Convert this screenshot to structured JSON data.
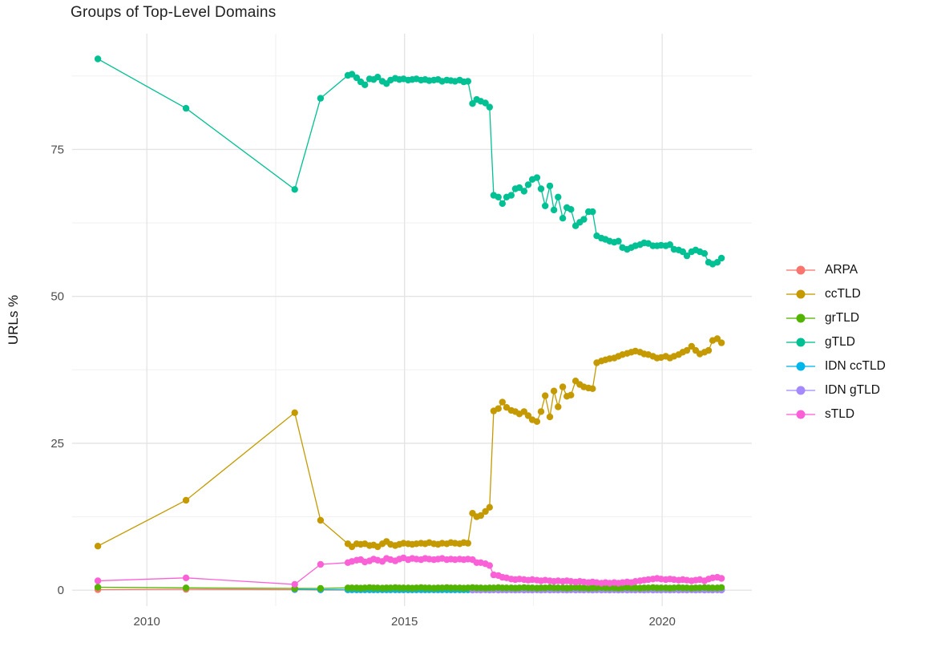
{
  "chart": {
    "title": "Groups of Top-Level Domains",
    "ylabel": "URLs %"
  },
  "chart_data": {
    "type": "line",
    "title": "Groups of Top-Level Domains",
    "xlabel": "",
    "ylabel": "URLs %",
    "grid": true,
    "legend_position": "right",
    "background": "#ffffff",
    "axes": {
      "xlim": [
        2008.55,
        2021.74
      ],
      "ylim": [
        -2.7,
        94.7
      ],
      "x_ticks": [
        2010,
        2015,
        2020
      ],
      "x_tick_labels": [
        "2010",
        "2015",
        "2020"
      ],
      "x_minor_ticks": [
        2012.5,
        2017.5
      ],
      "y_ticks": [
        0,
        25,
        50,
        75
      ],
      "y_tick_labels": [
        "0",
        "25",
        "50",
        "75"
      ],
      "y_minor_ticks": [
        12.5,
        37.5,
        62.5,
        87.5
      ],
      "tick_label_color": "#4d4d4d",
      "major_grid_color": "#e4e4e4",
      "minor_grid_color": "#f0f0f0"
    },
    "x": [
      2009.05,
      2010.76,
      2012.87,
      2013.37,
      2013.9,
      2013.98,
      2014.07,
      2014.15,
      2014.23,
      2014.32,
      2014.4,
      2014.48,
      2014.57,
      2014.65,
      2014.73,
      2014.82,
      2014.9,
      2014.98,
      2015.07,
      2015.15,
      2015.23,
      2015.32,
      2015.4,
      2015.48,
      2015.57,
      2015.65,
      2015.73,
      2015.82,
      2015.9,
      2015.98,
      2016.07,
      2016.15,
      2016.23,
      2016.32,
      2016.4,
      2016.48,
      2016.57,
      2016.65,
      2016.73,
      2016.82,
      2016.9,
      2016.98,
      2017.07,
      2017.15,
      2017.23,
      2017.32,
      2017.4,
      2017.48,
      2017.57,
      2017.65,
      2017.73,
      2017.82,
      2017.9,
      2017.98,
      2018.07,
      2018.15,
      2018.23,
      2018.32,
      2018.4,
      2018.48,
      2018.57,
      2018.65,
      2018.73,
      2018.82,
      2018.9,
      2018.98,
      2019.07,
      2019.15,
      2019.23,
      2019.32,
      2019.4,
      2019.48,
      2019.57,
      2019.65,
      2019.73,
      2019.82,
      2019.9,
      2019.98,
      2020.07,
      2020.15,
      2020.23,
      2020.32,
      2020.4,
      2020.48,
      2020.57,
      2020.65,
      2020.73,
      2020.82,
      2020.9,
      2020.98,
      2021.07,
      2021.15
    ],
    "series": [
      {
        "name": "ARPA",
        "color": "#F8766D",
        "values": [
          0.1,
          0.15,
          0.1,
          0.05,
          0.05,
          0.05,
          0.05,
          0.05,
          0.05,
          0.05,
          0.05,
          0.05,
          0.05,
          0.05,
          0.05,
          0.05,
          0.05,
          0.05,
          0.05,
          0.05,
          0.05,
          0.05,
          0.05,
          0.05,
          0.05,
          0.05,
          0.05,
          0.05,
          0.05,
          0.05,
          0.05,
          0.05,
          0.05,
          0.05,
          0.05,
          0.05,
          0.05,
          0.05,
          0.05,
          0.05,
          0.05,
          0.05,
          0.05,
          0.05,
          0.05,
          0.05,
          0.05,
          0.05,
          0.05,
          0.05,
          0.05,
          0.05,
          0.05,
          0.05,
          0.05,
          0.05,
          0.05,
          0.05,
          0.05,
          0.05,
          0.05,
          0.05,
          0.05,
          0.05,
          0.05,
          0.05,
          0.05,
          0.05,
          0.05,
          0.05,
          0.05,
          0.05,
          0.05,
          0.05,
          0.05,
          0.05,
          0.05,
          0.05,
          0.05,
          0.05,
          0.05,
          0.05,
          0.05,
          0.05,
          0.05,
          0.05,
          0.05,
          0.05,
          0.05,
          0.05,
          0.05,
          0.05
        ]
      },
      {
        "name": "ccTLD",
        "color": "#C49A00",
        "values": [
          7.5,
          15.3,
          30.2,
          11.9,
          7.9,
          7.4,
          7.9,
          7.8,
          7.9,
          7.6,
          7.7,
          7.4,
          7.9,
          8.3,
          7.8,
          7.6,
          7.8,
          8.0,
          7.9,
          7.8,
          7.9,
          8.0,
          7.9,
          8.1,
          7.9,
          7.8,
          8.0,
          7.9,
          8.1,
          8.0,
          7.9,
          8.1,
          8.0,
          13.1,
          12.5,
          12.7,
          13.4,
          14.1,
          30.5,
          30.9,
          32.0,
          31.1,
          30.6,
          30.4,
          30.0,
          30.4,
          29.7,
          29.0,
          28.7,
          30.4,
          33.1,
          29.5,
          33.9,
          31.2,
          34.6,
          33.0,
          33.2,
          35.6,
          35.0,
          34.6,
          34.4,
          34.3,
          38.7,
          39.0,
          39.2,
          39.4,
          39.5,
          39.8,
          40.1,
          40.3,
          40.5,
          40.7,
          40.5,
          40.2,
          40.1,
          39.8,
          39.5,
          39.6,
          39.8,
          39.5,
          39.8,
          40.1,
          40.5,
          40.8,
          41.5,
          40.8,
          40.2,
          40.5,
          40.8,
          42.5,
          42.8,
          42.1
        ]
      },
      {
        "name": "grTLD",
        "color": "#53B400",
        "values": [
          0.5,
          0.4,
          0.3,
          0.3,
          0.4,
          0.4,
          0.4,
          0.35,
          0.4,
          0.45,
          0.4,
          0.4,
          0.35,
          0.4,
          0.4,
          0.45,
          0.4,
          0.4,
          0.4,
          0.35,
          0.4,
          0.45,
          0.4,
          0.4,
          0.35,
          0.4,
          0.4,
          0.45,
          0.4,
          0.4,
          0.4,
          0.35,
          0.4,
          0.45,
          0.4,
          0.4,
          0.35,
          0.4,
          0.4,
          0.45,
          0.4,
          0.4,
          0.4,
          0.35,
          0.4,
          0.45,
          0.4,
          0.4,
          0.35,
          0.4,
          0.4,
          0.45,
          0.4,
          0.4,
          0.4,
          0.35,
          0.4,
          0.45,
          0.4,
          0.4,
          0.35,
          0.4,
          0.4,
          0.45,
          0.4,
          0.4,
          0.4,
          0.35,
          0.4,
          0.45,
          0.4,
          0.4,
          0.35,
          0.4,
          0.4,
          0.45,
          0.4,
          0.4,
          0.4,
          0.35,
          0.4,
          0.45,
          0.4,
          0.4,
          0.35,
          0.4,
          0.4,
          0.45,
          0.4,
          0.4,
          0.4,
          0.45
        ]
      },
      {
        "name": "gTLD",
        "color": "#00C094",
        "values": [
          90.4,
          82.0,
          68.2,
          83.7,
          87.6,
          87.8,
          87.2,
          86.5,
          86.0,
          87.0,
          86.9,
          87.3,
          86.6,
          86.2,
          86.8,
          87.1,
          86.9,
          87.0,
          86.8,
          86.9,
          87.0,
          86.8,
          86.9,
          86.7,
          86.8,
          86.9,
          86.6,
          86.8,
          86.7,
          86.6,
          86.8,
          86.5,
          86.6,
          82.8,
          83.5,
          83.2,
          82.9,
          82.2,
          67.2,
          66.9,
          65.8,
          66.9,
          67.2,
          68.3,
          68.5,
          67.9,
          69.0,
          69.9,
          70.2,
          68.3,
          65.4,
          68.8,
          64.7,
          66.9,
          63.3,
          65.1,
          64.8,
          62.0,
          62.6,
          63.1,
          64.4,
          64.4,
          60.3,
          59.9,
          59.7,
          59.4,
          59.2,
          59.4,
          58.3,
          58.0,
          58.3,
          58.6,
          58.8,
          59.1,
          59.0,
          58.6,
          58.6,
          58.7,
          58.6,
          58.8,
          58.0,
          57.9,
          57.6,
          56.9,
          57.6,
          57.9,
          57.6,
          57.3,
          55.8,
          55.5,
          55.8,
          56.5
        ]
      },
      {
        "name": "IDN ccTLD",
        "color": "#00B6EB",
        "values": [
          null,
          null,
          0.15,
          0.1,
          0.08,
          0.08,
          0.08,
          0.08,
          0.08,
          0.08,
          0.08,
          0.08,
          0.08,
          0.08,
          0.08,
          0.08,
          0.08,
          0.08,
          0.08,
          0.08,
          0.08,
          0.08,
          0.08,
          0.08,
          0.08,
          0.08,
          0.08,
          0.08,
          0.08,
          0.08,
          0.08,
          0.08,
          0.08,
          0.08,
          0.08,
          0.08,
          0.08,
          0.08,
          0.08,
          0.08,
          0.08,
          0.08,
          0.08,
          0.08,
          0.08,
          0.08,
          0.08,
          0.08,
          0.08,
          0.08,
          0.08,
          0.08,
          0.08,
          0.08,
          0.08,
          0.08,
          0.08,
          0.08,
          0.08,
          0.08,
          0.08,
          0.08,
          0.08,
          0.08,
          0.08,
          0.08,
          0.08,
          0.08,
          0.08,
          0.08,
          0.08,
          0.08,
          0.08,
          0.08,
          0.08,
          0.08,
          0.08,
          0.08,
          0.08,
          0.08,
          0.08,
          0.08,
          0.08,
          0.08,
          0.08,
          0.08,
          0.08,
          0.08,
          0.08,
          0.08,
          0.08,
          0.08
        ]
      },
      {
        "name": "IDN gTLD",
        "color": "#A58AFF",
        "values": [
          null,
          null,
          null,
          null,
          null,
          null,
          null,
          null,
          null,
          null,
          null,
          null,
          null,
          null,
          null,
          null,
          null,
          null,
          null,
          null,
          null,
          null,
          null,
          null,
          null,
          null,
          null,
          null,
          null,
          null,
          null,
          null,
          null,
          0.03,
          0.08,
          0.03,
          0.08,
          0.03,
          0.08,
          0.03,
          0.08,
          0.03,
          0.08,
          0.03,
          0.08,
          0.03,
          0.08,
          0.03,
          0.08,
          0.03,
          0.08,
          0.03,
          0.08,
          0.03,
          0.08,
          0.03,
          0.08,
          0.03,
          0.08,
          0.03,
          0.08,
          0.03,
          0.08,
          0.03,
          0.08,
          0.03,
          0.08,
          0.03,
          0.08,
          0.03,
          0.08,
          0.03,
          0.08,
          0.03,
          0.08,
          0.03,
          0.08,
          0.03,
          0.08,
          0.03,
          0.08,
          0.03,
          0.08,
          0.03,
          0.08,
          0.03,
          0.08,
          0.03,
          0.08,
          0.03,
          0.08,
          0.03
        ]
      },
      {
        "name": "sTLD",
        "color": "#FB61D7",
        "values": [
          1.6,
          2.1,
          1.0,
          4.4,
          4.7,
          4.9,
          5.1,
          5.2,
          4.8,
          5.0,
          5.3,
          5.1,
          4.9,
          5.4,
          5.2,
          5.0,
          5.3,
          5.5,
          5.2,
          5.4,
          5.3,
          5.2,
          5.4,
          5.3,
          5.2,
          5.3,
          5.4,
          5.2,
          5.3,
          5.2,
          5.3,
          5.2,
          5.3,
          5.2,
          4.7,
          4.7,
          4.5,
          4.2,
          2.6,
          2.5,
          2.2,
          2.1,
          1.9,
          1.8,
          1.9,
          1.8,
          1.7,
          1.8,
          1.7,
          1.6,
          1.7,
          1.6,
          1.5,
          1.6,
          1.5,
          1.6,
          1.5,
          1.4,
          1.5,
          1.4,
          1.3,
          1.4,
          1.3,
          1.2,
          1.3,
          1.2,
          1.3,
          1.2,
          1.3,
          1.4,
          1.3,
          1.5,
          1.6,
          1.7,
          1.8,
          1.9,
          2.0,
          1.9,
          1.8,
          1.9,
          1.8,
          1.7,
          1.8,
          1.7,
          1.6,
          1.7,
          1.8,
          1.6,
          1.9,
          2.1,
          2.2,
          2.0
        ]
      }
    ]
  }
}
